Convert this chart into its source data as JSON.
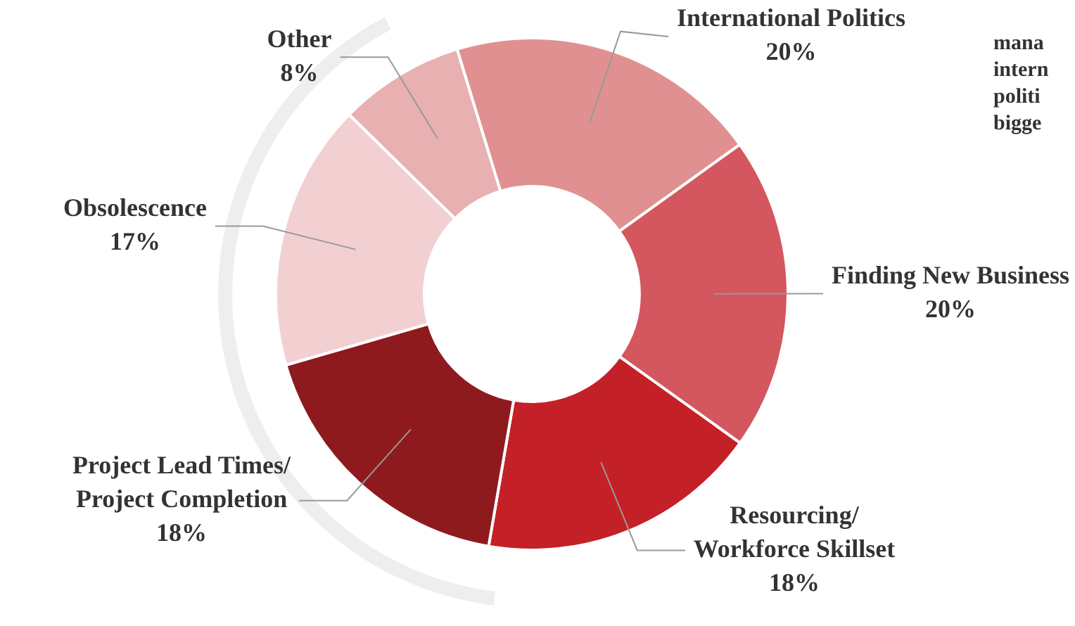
{
  "chart_data": {
    "type": "donut",
    "categories": [
      "International Politics",
      "Finding New Business",
      "Resourcing/ Workforce Skillset",
      "Project Lead Times/ Project Completion",
      "Obsolescence",
      "Other"
    ],
    "values": [
      20,
      20,
      18,
      18,
      17,
      8
    ],
    "value_labels": [
      "20%",
      "20%",
      "18%",
      "18%",
      "17%",
      "8%"
    ],
    "colors": [
      "#e09090",
      "#d4565e",
      "#c42027",
      "#8e1a1e",
      "#f2d0d2",
      "#e8b0b0"
    ],
    "annotations": [
      "mana",
      "intern",
      "politi",
      "bigge"
    ],
    "legend": false
  }
}
